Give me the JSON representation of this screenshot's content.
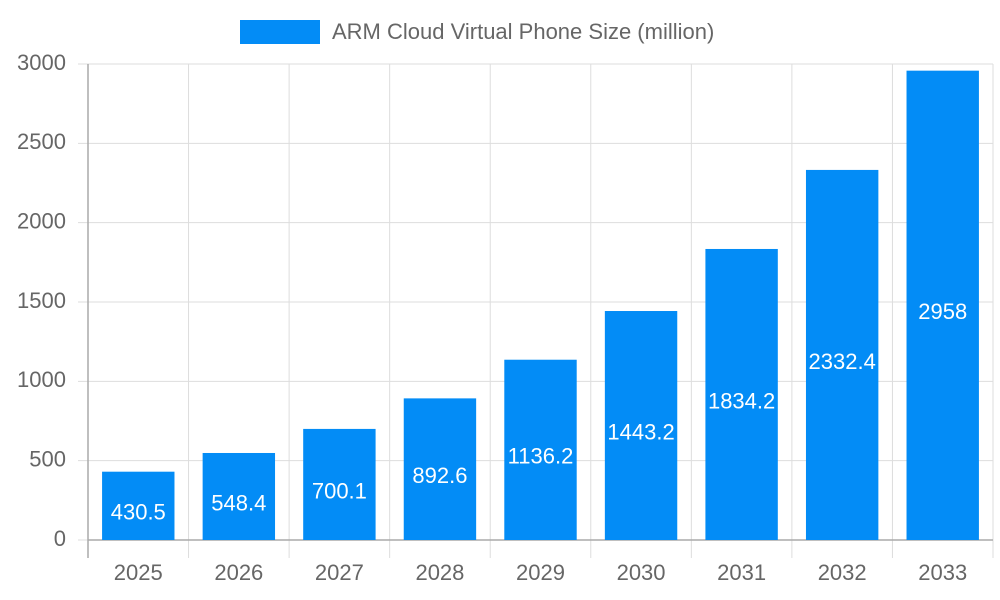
{
  "chart_data": {
    "type": "bar",
    "categories": [
      "2025",
      "2026",
      "2027",
      "2028",
      "2029",
      "2030",
      "2031",
      "2032",
      "2033"
    ],
    "series": [
      {
        "name": "ARM Cloud Virtual Phone Size (million)",
        "color": "#038cf6",
        "values": [
          430.5,
          548.4,
          700.1,
          892.6,
          1136.2,
          1443.2,
          1834.2,
          2332.4,
          2958
        ]
      }
    ],
    "ylim": [
      0,
      3000
    ],
    "yticks": [
      0,
      500,
      1000,
      1500,
      2000,
      2500,
      3000
    ],
    "grid": true,
    "legend": "top"
  }
}
